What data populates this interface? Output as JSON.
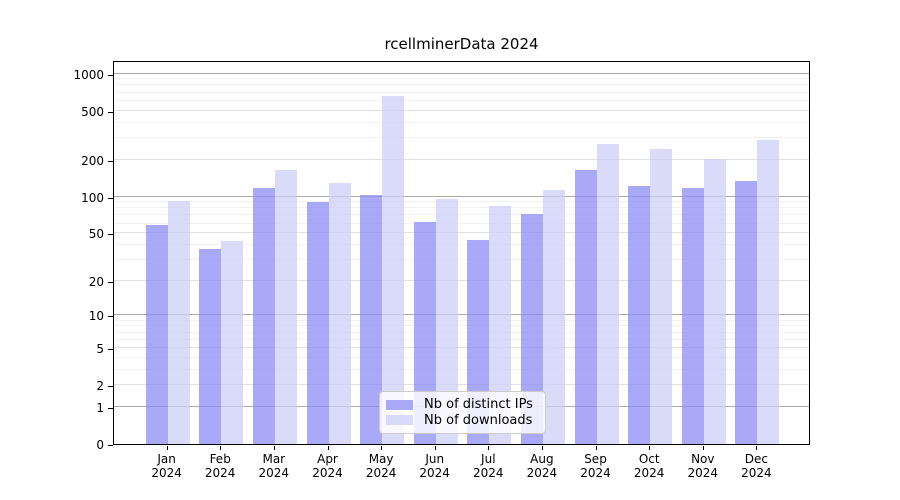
{
  "chart": {
    "title": "rcellminerData 2024",
    "background": "#ffffff",
    "spine_color": "#000000",
    "grid_colors": {
      "major": "#ababab",
      "sub": "#e1e1e1",
      "minor": "#f2f2f2"
    }
  },
  "chart_data": {
    "type": "bar",
    "title": "rcellminerData 2024",
    "categories": [
      "Jan 2024",
      "Feb 2024",
      "Mar 2024",
      "Apr 2024",
      "May 2024",
      "Jun 2024",
      "Jul 2024",
      "Aug 2024",
      "Sep 2024",
      "Oct 2024",
      "Nov 2024",
      "Dec 2024"
    ],
    "series": [
      {
        "name": "Nb of distinct IPs",
        "color": "#a9a9f8",
        "fill": "rgba(140,140,245,0.75)",
        "values": [
          58,
          37,
          118,
          91,
          102,
          62,
          44,
          72,
          165,
          123,
          118,
          134
        ]
      },
      {
        "name": "Nb of downloads",
        "color": "#d9d9f9",
        "fill": "rgba(205,205,247,0.75)",
        "values": [
          92,
          43,
          165,
          130,
          653,
          95,
          83,
          113,
          268,
          244,
          202,
          287
        ]
      }
    ],
    "xlabel": "",
    "ylabel": "",
    "yscale": "log1p",
    "ylim": [
      0,
      1286
    ],
    "yticks": [
      0,
      1,
      2,
      5,
      10,
      20,
      50,
      100,
      200,
      500,
      1000
    ],
    "grid": "horizontal major and minor gridlines",
    "legend_position": "lower center"
  }
}
